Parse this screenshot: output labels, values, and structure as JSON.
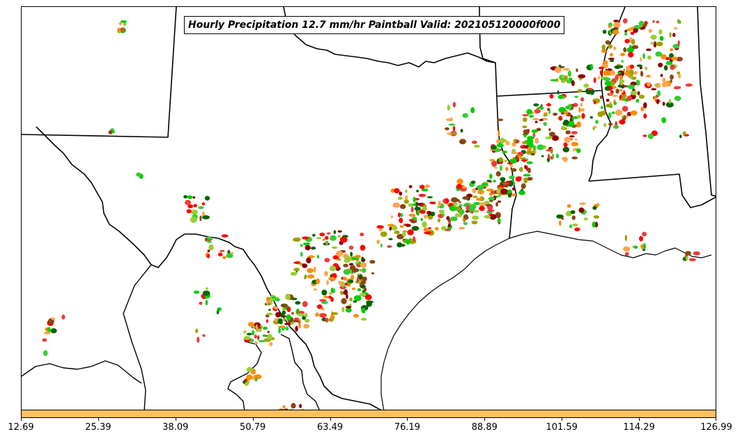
{
  "map": {
    "title": "Hourly Precipitation 12.7 mm/hr Paintball Valid: 202105120000f000",
    "blob_colors": [
      "#ff8c00",
      "#ffa54f",
      "#ff0000",
      "#ee3b3b",
      "#8b0000",
      "#8b4513",
      "#00cd00",
      "#32cd32",
      "#006400",
      "#9acd32",
      "#a0a000"
    ],
    "boundary_color": "#000000"
  },
  "colorbar": {
    "color": "#ffc060",
    "ticks": [
      "12.69",
      "25.39",
      "38.09",
      "50.79",
      "63.49",
      "76.19",
      "88.89",
      "101.59",
      "114.29",
      "126.99"
    ]
  }
}
